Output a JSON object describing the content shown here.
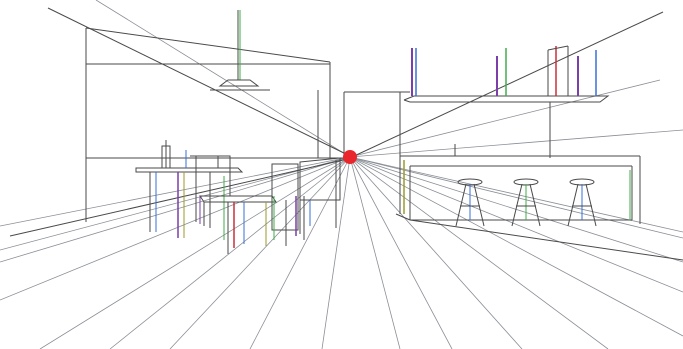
{
  "colors": {
    "background": "#ffffff",
    "ink": "#4a4a4a",
    "perspective_line": "#8a8f96",
    "vanishing_point": "#e8262b",
    "accent_blue": "#3a6fd8",
    "accent_green": "#3fae4a",
    "accent_purple": "#7a3fa8",
    "accent_red": "#c8303a",
    "accent_olive": "#9a9a2a"
  },
  "drawing": {
    "subject": "one-point-perspective-interior-sketch",
    "vanishing_point_marker": "red-dot"
  }
}
